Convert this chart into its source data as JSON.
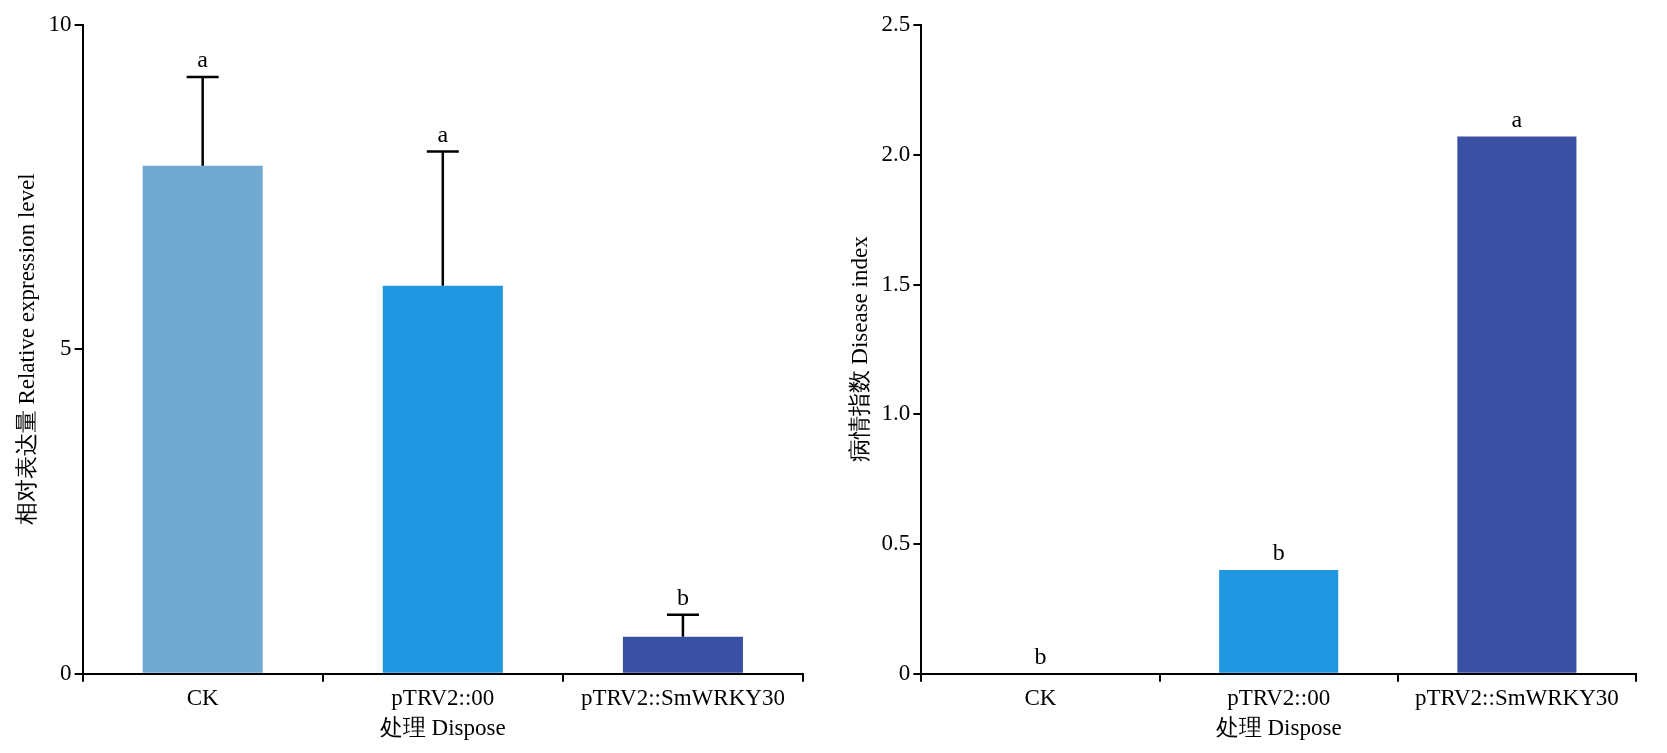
{
  "chart_data": [
    {
      "type": "bar",
      "categories": [
        "CK",
        "pTRV2::00",
        "pTRV2::SmWRKY30"
      ],
      "colors": [
        "#71a9d0",
        "#2097e0",
        "#3a51a3"
      ],
      "values": [
        7.83,
        5.98,
        0.57
      ],
      "errors": [
        [
          7.83,
          9.2
        ],
        [
          5.98,
          8.05
        ],
        [
          0.57,
          0.91
        ]
      ],
      "ylim": [
        0,
        10
      ],
      "yticks": [
        0,
        5,
        10
      ],
      "xlabel": "处理 Dispose",
      "ylabel": "相对表达量 Relative expression level",
      "grid": false,
      "legend": false,
      "annotations": [
        {
          "text": "a",
          "x": "CK",
          "y": 9.2
        },
        {
          "text": "a",
          "x": "pTRV2::00",
          "y": 8.05
        },
        {
          "text": "b",
          "x": "pTRV2::SmWRKY30",
          "y": 0.91
        }
      ]
    },
    {
      "type": "bar",
      "categories": [
        "CK",
        "pTRV2::00",
        "pTRV2::SmWRKY30"
      ],
      "colors": [
        "#71a9d0",
        "#2097e0",
        "#3a51a3"
      ],
      "values": [
        0,
        0.4,
        2.07
      ],
      "ylim": [
        0,
        2.5
      ],
      "yticks": [
        0,
        {
          "value": 0.5,
          "label": "0.5"
        },
        {
          "value": 1,
          "label": "1.0"
        },
        {
          "value": 1.5,
          "label": "1.5"
        },
        {
          "value": 2,
          "label": "2.0"
        },
        {
          "value": 2.5,
          "label": "2.5"
        }
      ],
      "xlabel": "处理 Dispose",
      "ylabel": "病情指数 Disease index",
      "grid": false,
      "legend": false,
      "annotations": [
        {
          "text": "b",
          "x": "CK",
          "y": 0
        },
        {
          "text": "b",
          "x": "pTRV2::00",
          "y": 0.4
        },
        {
          "text": "a",
          "x": "pTRV2::SmWRKY30",
          "y": 2.07
        }
      ]
    }
  ]
}
